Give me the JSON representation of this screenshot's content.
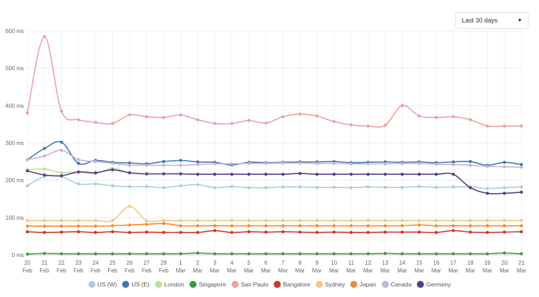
{
  "controls": {
    "range_label": "Last 30 days"
  },
  "colors": {
    "US (W)": "#a9cce0",
    "US (E)": "#3e77ad",
    "London": "#b7e09a",
    "Singapore": "#3f9a3b",
    "Sao Paulo": "#ee9f9f",
    "Bangalore": "#d2322d",
    "Sydney": "#f5c67a",
    "Japan": "#ef8c33",
    "Canada": "#c9b1d8",
    "Germany": "#5a3d8c"
  },
  "chart_data": {
    "type": "line",
    "ylim": [
      0,
      600
    ],
    "yticks": [
      0,
      100,
      200,
      300,
      400,
      500,
      600
    ],
    "ytick_labels": [
      "0 ms",
      "100 ms",
      "200 ms",
      "300 ms",
      "400 ms",
      "500 ms",
      "600 ms"
    ],
    "categories": [
      [
        "20",
        "Feb"
      ],
      [
        "21",
        "Feb"
      ],
      [
        "22",
        "Feb"
      ],
      [
        "23",
        "Feb"
      ],
      [
        "24",
        "Feb"
      ],
      [
        "25",
        "Feb"
      ],
      [
        "26",
        "Feb"
      ],
      [
        "27",
        "Feb"
      ],
      [
        "28",
        "Feb"
      ],
      [
        "1",
        "Mar"
      ],
      [
        "2",
        "Mar"
      ],
      [
        "3",
        "Mar"
      ],
      [
        "4",
        "Mar"
      ],
      [
        "5",
        "Mar"
      ],
      [
        "6",
        "Mar"
      ],
      [
        "7",
        "Mar"
      ],
      [
        "8",
        "Mar"
      ],
      [
        "9",
        "Mar"
      ],
      [
        "10",
        "Mar"
      ],
      [
        "11",
        "Mar"
      ],
      [
        "12",
        "Mar"
      ],
      [
        "13",
        "Mar"
      ],
      [
        "14",
        "Mar"
      ],
      [
        "15",
        "Mar"
      ],
      [
        "16",
        "Mar"
      ],
      [
        "17",
        "Mar"
      ],
      [
        "18",
        "Mar"
      ],
      [
        "19",
        "Mar"
      ],
      [
        "20",
        "Mar"
      ],
      [
        "21",
        "Mar"
      ]
    ],
    "x_points": [
      0,
      1,
      2,
      3,
      4,
      5,
      6,
      7,
      8,
      9,
      10,
      11,
      12,
      13,
      14,
      15,
      16,
      17,
      18,
      19,
      20,
      21,
      22,
      23,
      24,
      25,
      26,
      27,
      28,
      29,
      30,
      31,
      32,
      33,
      34,
      35,
      36,
      37,
      38,
      39,
      40,
      41,
      42,
      43,
      44,
      45,
      46,
      47,
      48,
      49,
      50,
      51,
      52,
      53,
      54,
      55,
      56,
      57,
      58
    ],
    "series": [
      {
        "name": "US (W)",
        "values": [
          185,
          210,
          210,
          190,
          190,
          185,
          183,
          183,
          180,
          185,
          188,
          180,
          183,
          180,
          180,
          182,
          182,
          181,
          181,
          180,
          182,
          181,
          181,
          183,
          181,
          182,
          182,
          178,
          180,
          182
        ]
      },
      {
        "name": "US (E)",
        "values": [
          255,
          285,
          302,
          245,
          253,
          248,
          246,
          244,
          250,
          253,
          249,
          248,
          241,
          248,
          247,
          248,
          249,
          249,
          250,
          247,
          248,
          249,
          248,
          249,
          247,
          249,
          250,
          240,
          248,
          242
        ]
      },
      {
        "name": "London",
        "values": [
          228,
          230,
          220,
          222,
          218,
          232,
          220,
          217,
          217,
          217,
          216,
          216,
          216,
          216,
          216,
          216,
          218,
          216,
          216,
          216,
          216,
          216,
          216,
          216,
          216,
          216,
          180,
          165,
          165,
          168
        ]
      },
      {
        "name": "Singapore",
        "values": [
          2,
          4,
          3,
          3,
          3,
          3,
          3,
          3,
          3,
          3,
          5,
          3,
          3,
          3,
          3,
          3,
          3,
          3,
          3,
          3,
          3,
          4,
          3,
          3,
          3,
          3,
          3,
          3,
          5,
          3
        ]
      },
      {
        "name": "Sao Paulo",
        "values": [
          380,
          585,
          385,
          362,
          355,
          352,
          375,
          370,
          368,
          375,
          362,
          352,
          352,
          360,
          353,
          370,
          377,
          372,
          357,
          348,
          345,
          347,
          400,
          372,
          368,
          370,
          362,
          345,
          345,
          345
        ]
      },
      {
        "name": "Bangalore",
        "values": [
          62,
          60,
          61,
          62,
          60,
          62,
          60,
          61,
          60,
          60,
          60,
          65,
          60,
          62,
          61,
          62,
          61,
          60,
          61,
          60,
          60,
          61,
          61,
          61,
          60,
          65,
          61,
          60,
          61,
          62
        ]
      },
      {
        "name": "Sydney",
        "values": [
          92,
          92,
          92,
          92,
          92,
          92,
          130,
          92,
          92,
          92,
          92,
          92,
          92,
          92,
          92,
          92,
          92,
          92,
          92,
          92,
          92,
          92,
          92,
          92,
          92,
          92,
          92,
          92,
          92,
          92
        ]
      },
      {
        "name": "Japan",
        "values": [
          77,
          77,
          77,
          77,
          77,
          78,
          80,
          82,
          84,
          78,
          78,
          78,
          78,
          78,
          78,
          78,
          78,
          78,
          78,
          78,
          78,
          78,
          78,
          80,
          78,
          78,
          78,
          78,
          78,
          78
        ]
      },
      {
        "name": "Canada",
        "values": [
          255,
          265,
          280,
          255,
          250,
          245,
          240,
          240,
          240,
          240,
          242,
          244,
          244,
          245,
          245,
          246,
          246,
          245,
          245,
          244,
          244,
          244,
          245,
          245,
          243,
          242,
          240,
          237,
          236,
          235
        ]
      },
      {
        "name": "Germany",
        "values": [
          225,
          214,
          212,
          222,
          220,
          228,
          220,
          217,
          217,
          217,
          216,
          216,
          216,
          216,
          216,
          216,
          218,
          216,
          216,
          216,
          216,
          216,
          216,
          216,
          216,
          216,
          180,
          165,
          165,
          168
        ]
      }
    ]
  }
}
